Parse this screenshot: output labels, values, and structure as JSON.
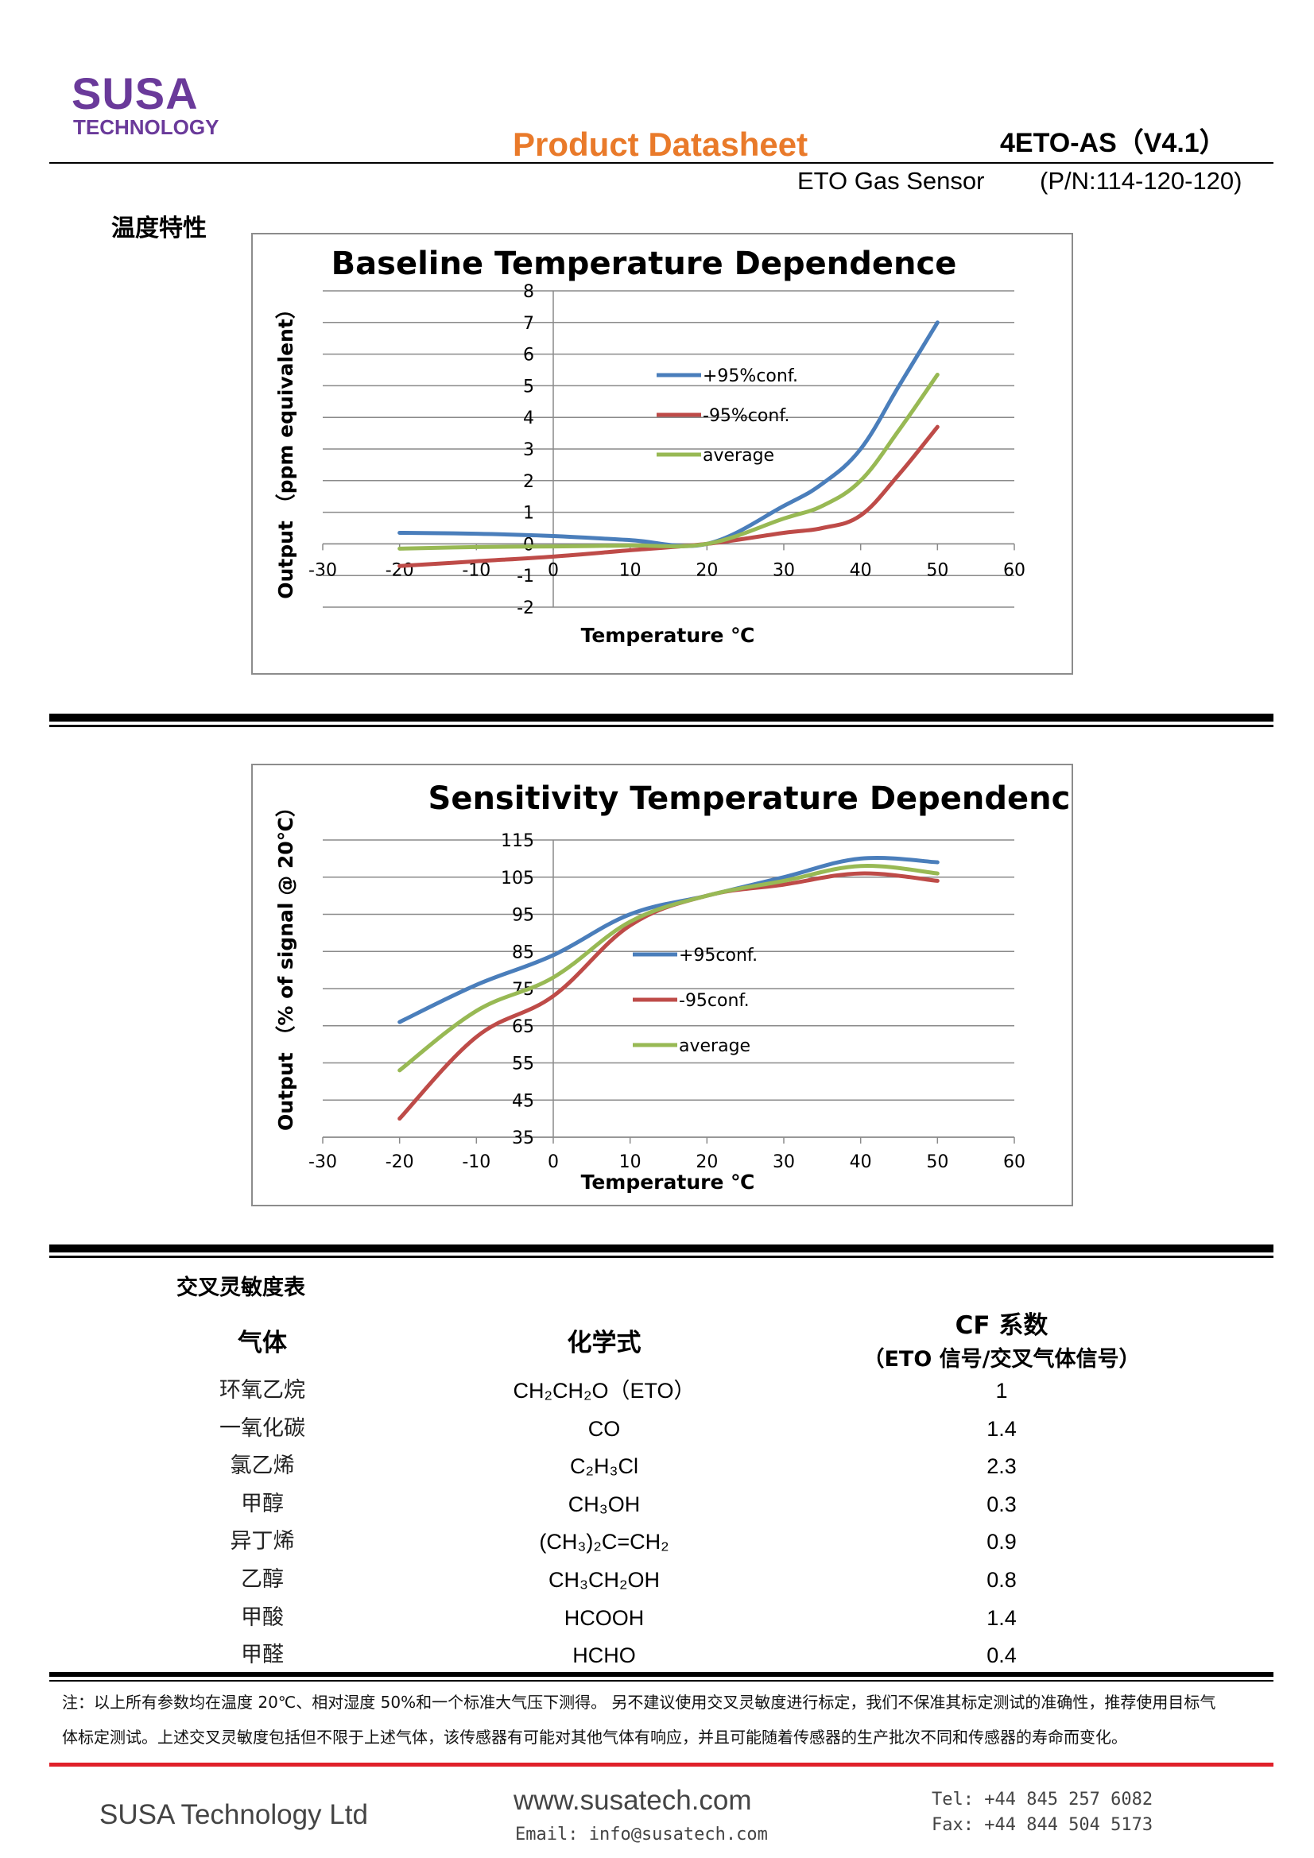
{
  "header": {
    "logo_line1": "SUSA",
    "logo_line2": "TECHNOLOGY",
    "title": "Product Datasheet",
    "model": "4ETO-AS（V4.1）",
    "product": "ETO Gas Sensor",
    "part_number": "(P/N:114-120-120)"
  },
  "section_temperature": "温度特性",
  "chart_data": [
    {
      "type": "line",
      "title": "Baseline Temperature Dependence",
      "xlabel": "Temperature ℃",
      "ylabel": "Output （ppm equivalent）",
      "xlim": [
        -30,
        60
      ],
      "ylim": [
        -2,
        8
      ],
      "xticks": [
        -30,
        -20,
        -10,
        0,
        10,
        20,
        30,
        40,
        50,
        60
      ],
      "yticks": [
        -2,
        -1,
        0,
        1,
        2,
        3,
        4,
        5,
        6,
        7,
        8
      ],
      "grid": true,
      "legend_position": "center",
      "series": [
        {
          "name": "+95%conf.",
          "color": "#4a7ebb",
          "x": [
            -20,
            -10,
            0,
            10,
            20,
            30,
            35,
            40,
            45,
            50
          ],
          "y": [
            0.35,
            0.32,
            0.25,
            0.12,
            0.0,
            1.2,
            1.9,
            3.0,
            5.0,
            7.0
          ]
        },
        {
          "name": "-95%conf.",
          "color": "#be4b48",
          "x": [
            -20,
            -10,
            0,
            10,
            20,
            30,
            35,
            40,
            45,
            50
          ],
          "y": [
            -0.7,
            -0.55,
            -0.4,
            -0.2,
            0.0,
            0.35,
            0.5,
            0.9,
            2.2,
            3.7
          ]
        },
        {
          "name": "average",
          "color": "#98b954",
          "x": [
            -20,
            -10,
            0,
            10,
            20,
            30,
            35,
            40,
            45,
            50
          ],
          "y": [
            -0.15,
            -0.1,
            -0.08,
            -0.05,
            0.0,
            0.8,
            1.2,
            2.0,
            3.6,
            5.35
          ]
        }
      ]
    },
    {
      "type": "line",
      "title": "Sensitivity Temperature Dependence",
      "xlabel": "Temperature ℃",
      "ylabel": "Output （% of signal @ 20℃）",
      "xlim": [
        -30,
        60
      ],
      "ylim": [
        35,
        115
      ],
      "xticks": [
        -30,
        -20,
        -10,
        0,
        10,
        20,
        30,
        40,
        50,
        60
      ],
      "yticks": [
        35,
        45,
        55,
        65,
        75,
        85,
        95,
        105,
        115
      ],
      "grid": true,
      "legend_position": "center",
      "series": [
        {
          "name": "+95conf.",
          "color": "#4a7ebb",
          "x": [
            -20,
            -10,
            0,
            10,
            20,
            30,
            40,
            50
          ],
          "y": [
            66,
            76,
            84,
            95,
            100,
            105,
            110,
            109
          ]
        },
        {
          "name": "-95conf.",
          "color": "#be4b48",
          "x": [
            -20,
            -10,
            0,
            10,
            20,
            30,
            40,
            50
          ],
          "y": [
            40,
            62,
            73,
            92,
            100,
            103,
            106,
            104
          ]
        },
        {
          "name": "average",
          "color": "#98b954",
          "x": [
            -20,
            -10,
            0,
            10,
            20,
            30,
            40,
            50
          ],
          "y": [
            53,
            69,
            78,
            93,
            100,
            104,
            108,
            106
          ]
        }
      ]
    }
  ],
  "cross_sensitivity": {
    "title": "交叉灵敏度表",
    "col_gas": "气体",
    "col_formula": "化学式",
    "col_cf": "CF 系数",
    "col_cf_sub": "（ETO 信号/交叉气体信号）",
    "rows": [
      {
        "gas": "环氧乙烷",
        "formula": "CH₂CH₂O（ETO）",
        "cf": "1"
      },
      {
        "gas": "一氧化碳",
        "formula": "CO",
        "cf": "1.4"
      },
      {
        "gas": "氯乙烯",
        "formula": "C₂H₃Cl",
        "cf": "2.3"
      },
      {
        "gas": "甲醇",
        "formula": "CH₃OH",
        "cf": "0.3"
      },
      {
        "gas": "异丁烯",
        "formula": "(CH₃)₂C=CH₂",
        "cf": "0.9"
      },
      {
        "gas": "乙醇",
        "formula": "CH₃CH₂OH",
        "cf": "0.8"
      },
      {
        "gas": "甲酸",
        "formula": "HCOOH",
        "cf": "1.4"
      },
      {
        "gas": "甲醛",
        "formula": "HCHO",
        "cf": "0.4"
      }
    ]
  },
  "note_line1": "注：以上所有参数均在温度 20℃、相对湿度 50%和一个标准大气压下测得。 另不建议使用交叉灵敏度进行标定，我们不保准其标定测试的准确性，推荐使用目标气",
  "note_line2": "体标定测试。上述交叉灵敏度包括但不限于上述气体，该传感器有可能对其他气体有响应，并且可能随着传感器的生产批次不同和传感器的寿命而变化。",
  "footer": {
    "company": "SUSA Technology Ltd",
    "website": "www.susatech.com",
    "email": "Email: info@susatech.com",
    "tel": "Tel: +44 845 257 6082",
    "fax": "Fax: +44 844 504 5173"
  }
}
